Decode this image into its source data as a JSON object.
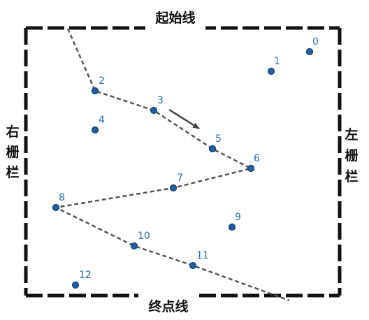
{
  "labels": {
    "top": "起始线",
    "bottom": "终点线",
    "left": [
      "右",
      "栅",
      "栏"
    ],
    "right": [
      "左",
      "栅",
      "栏"
    ]
  },
  "colors": {
    "border": "#111111",
    "point": "#1f5fa8",
    "point_stroke": "#163f70",
    "point_label": "#2b6cb3",
    "path": "#555555",
    "arrow": "#444444"
  },
  "points": [
    {
      "id": "0",
      "label": "0"
    },
    {
      "id": "1",
      "label": "1"
    },
    {
      "id": "2",
      "label": "2"
    },
    {
      "id": "3",
      "label": "3"
    },
    {
      "id": "4",
      "label": "4"
    },
    {
      "id": "5",
      "label": "5"
    },
    {
      "id": "6",
      "label": "6"
    },
    {
      "id": "7",
      "label": "7"
    },
    {
      "id": "8",
      "label": "8"
    },
    {
      "id": "9",
      "label": "9"
    },
    {
      "id": "10",
      "label": "10"
    },
    {
      "id": "11",
      "label": "11"
    },
    {
      "id": "12",
      "label": "12"
    }
  ],
  "path_sequence": [
    "start",
    "2",
    "3",
    "5",
    "6",
    "7",
    "8",
    "10",
    "11",
    "end"
  ]
}
